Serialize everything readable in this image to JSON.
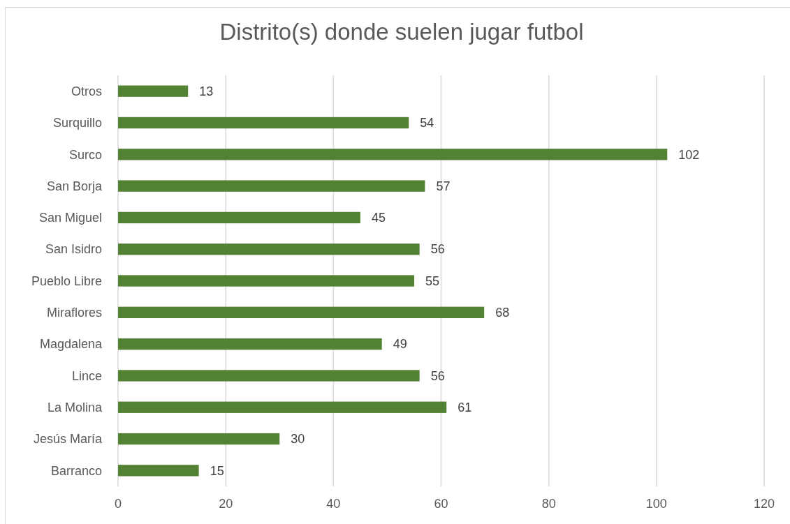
{
  "chart_data": {
    "type": "bar",
    "orientation": "horizontal",
    "title": "Distrito(s) donde suelen jugar futbol",
    "categories": [
      "Otros",
      "Surquillo",
      "Surco",
      "San Borja",
      "San Miguel",
      "San Isidro",
      "Pueblo Libre",
      "Miraflores",
      "Magdalena",
      "Lince",
      "La Molina",
      "Jesús María",
      "Barranco"
    ],
    "values": [
      13,
      54,
      102,
      57,
      45,
      56,
      55,
      68,
      49,
      56,
      61,
      30,
      15
    ],
    "color": "#548235",
    "xlim": [
      0,
      120
    ],
    "xticks": [
      0,
      20,
      40,
      60,
      80,
      100,
      120
    ],
    "grid": "x",
    "data_labels": true
  }
}
